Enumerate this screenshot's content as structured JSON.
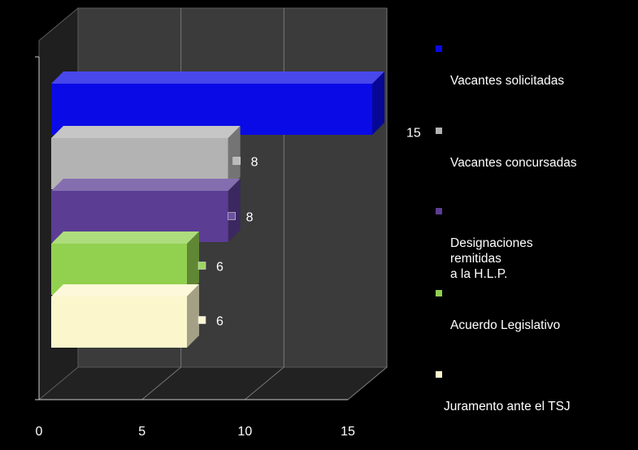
{
  "chart_data": {
    "type": "bar",
    "orientation": "horizontal",
    "three_d": true,
    "categories": [
      "Vacantes solicitadas",
      "Vacantes concursadas",
      "Designaciones\nremitidas\n a la H.L.P.",
      "Acuerdo Legislativo",
      "Juramento ante el TSJ"
    ],
    "values": [
      15,
      8,
      8,
      6,
      6
    ],
    "data_labels": [
      "15",
      "8",
      "8",
      "6",
      "6"
    ],
    "colors": [
      "#0a0ae6",
      "#b3b3b3",
      "#5b3d94",
      "#92d050",
      "#fcf6cc"
    ],
    "xlim": [
      0,
      15
    ],
    "x_ticks": [
      "0",
      "5",
      "10",
      "15"
    ],
    "grid": true,
    "legend_position": "right",
    "title": "",
    "xlabel": "",
    "ylabel": ""
  }
}
